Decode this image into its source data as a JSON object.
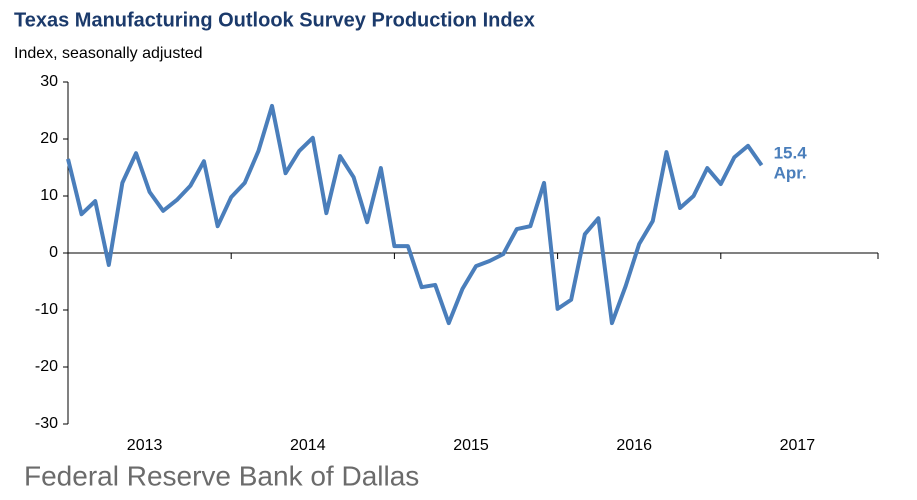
{
  "chart_data": {
    "type": "line",
    "title": "Texas Manufacturing Outlook Survey Production Index",
    "subtitle": "Index, seasonally adjusted",
    "footer": "Federal Reserve Bank of Dallas",
    "x": [
      2013,
      2013.083,
      2013.167,
      2013.25,
      2013.333,
      2013.417,
      2013.5,
      2013.583,
      2013.667,
      2013.75,
      2013.833,
      2013.917,
      2014,
      2014.083,
      2014.167,
      2014.25,
      2014.333,
      2014.417,
      2014.5,
      2014.583,
      2014.667,
      2014.75,
      2014.833,
      2014.917,
      2015,
      2015.083,
      2015.167,
      2015.25,
      2015.333,
      2015.417,
      2015.5,
      2015.583,
      2015.667,
      2015.75,
      2015.833,
      2015.917,
      2016,
      2016.083,
      2016.167,
      2016.25,
      2016.333,
      2016.417,
      2016.5,
      2016.583,
      2016.667,
      2016.75,
      2016.833,
      2016.917,
      2017,
      2017.083,
      2017.167,
      2017.25
    ],
    "series": [
      {
        "name": "Production Index",
        "color": "#4a7ebb",
        "values": [
          16.5,
          6.8,
          9.1,
          -2.1,
          12.3,
          17.5,
          10.7,
          7.4,
          9.3,
          11.8,
          16.1,
          4.7,
          9.8,
          12.3,
          17.9,
          25.8,
          14.0,
          17.9,
          20.2,
          7.0,
          17.0,
          13.3,
          5.4,
          14.9,
          1.2,
          1.2,
          -6.0,
          -5.6,
          -12.3,
          -6.3,
          -2.3,
          -1.4,
          -0.2,
          4.2,
          4.7,
          12.3,
          -9.8,
          -8.2,
          3.3,
          6.1,
          -12.3,
          -5.8,
          1.6,
          5.6,
          17.7,
          7.9,
          10.0,
          14.9,
          12.1,
          16.8,
          18.8,
          15.4
        ]
      }
    ],
    "annotations": [
      {
        "text": "15.4"
      },
      {
        "text": "Apr."
      }
    ],
    "xlim": [
      2013,
      2018
    ],
    "xticks": [
      2013,
      2014,
      2015,
      2016,
      2017
    ],
    "ylim": [
      -30,
      30
    ],
    "yticks": [
      -30,
      -20,
      -10,
      0,
      10,
      20,
      30
    ],
    "grid": false
  }
}
